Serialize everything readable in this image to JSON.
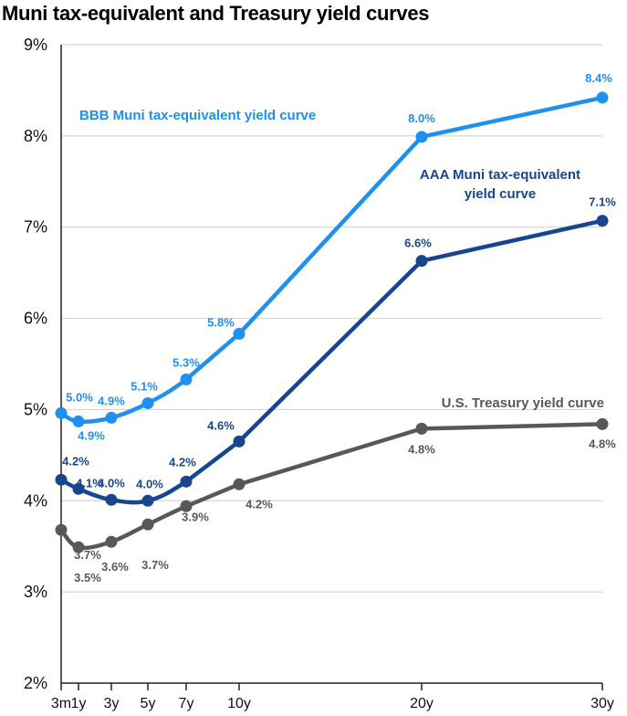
{
  "chart_data": {
    "type": "line",
    "title": "Muni tax-equivalent and Treasury yield curves",
    "xlabel": "",
    "ylabel": "",
    "x": [
      "3m",
      "1y",
      "3y",
      "5y",
      "7y",
      "10y",
      "20y",
      "30y"
    ],
    "x_years": [
      0.25,
      1,
      3,
      5,
      7,
      10,
      20,
      30
    ],
    "ylim": [
      2,
      9
    ],
    "y_ticks": [
      "2%",
      "3%",
      "4%",
      "5%",
      "6%",
      "7%",
      "8%",
      "9%"
    ],
    "y_tick_values": [
      2,
      3,
      4,
      5,
      6,
      7,
      8,
      9
    ],
    "grid": true,
    "legend": "inline annotations",
    "series": [
      {
        "name": "BBB Muni tax-equivalent yield curve",
        "color": "#1E90F0",
        "values": [
          4.96,
          4.87,
          4.91,
          5.07,
          5.33,
          5.83,
          7.99,
          8.42
        ],
        "labels": [
          "5.0%",
          "4.9%",
          "4.9%",
          "5.1%",
          "5.3%",
          "5.8%",
          "8.0%",
          "8.4%"
        ]
      },
      {
        "name": "AAA Muni tax-equivalent yield curve",
        "color": "#17468E",
        "values": [
          4.23,
          4.13,
          4.01,
          4.0,
          4.21,
          4.65,
          6.63,
          7.07
        ],
        "labels": [
          "4.2%",
          "4.1%",
          "4.0%",
          "4.0%",
          "4.2%",
          "4.6%",
          "6.6%",
          "7.1%"
        ]
      },
      {
        "name": "U.S. Treasury yield curve",
        "color": "#56595C",
        "values": [
          3.68,
          3.49,
          3.55,
          3.74,
          3.94,
          4.18,
          4.79,
          4.84
        ],
        "labels": [
          "3.7%",
          "3.5%",
          "3.6%",
          "3.7%",
          "3.9%",
          "4.2%",
          "4.8%",
          "4.8%"
        ]
      }
    ],
    "annotations": [
      {
        "series": 0,
        "lines": [
          "BBB  Muni tax-equivalent yield curve"
        ]
      },
      {
        "series": 1,
        "lines": [
          "AAA  Muni tax-equivalent",
          "yield curve"
        ]
      },
      {
        "series": 2,
        "lines": [
          "U.S.  Treasury yield curve"
        ]
      }
    ]
  }
}
